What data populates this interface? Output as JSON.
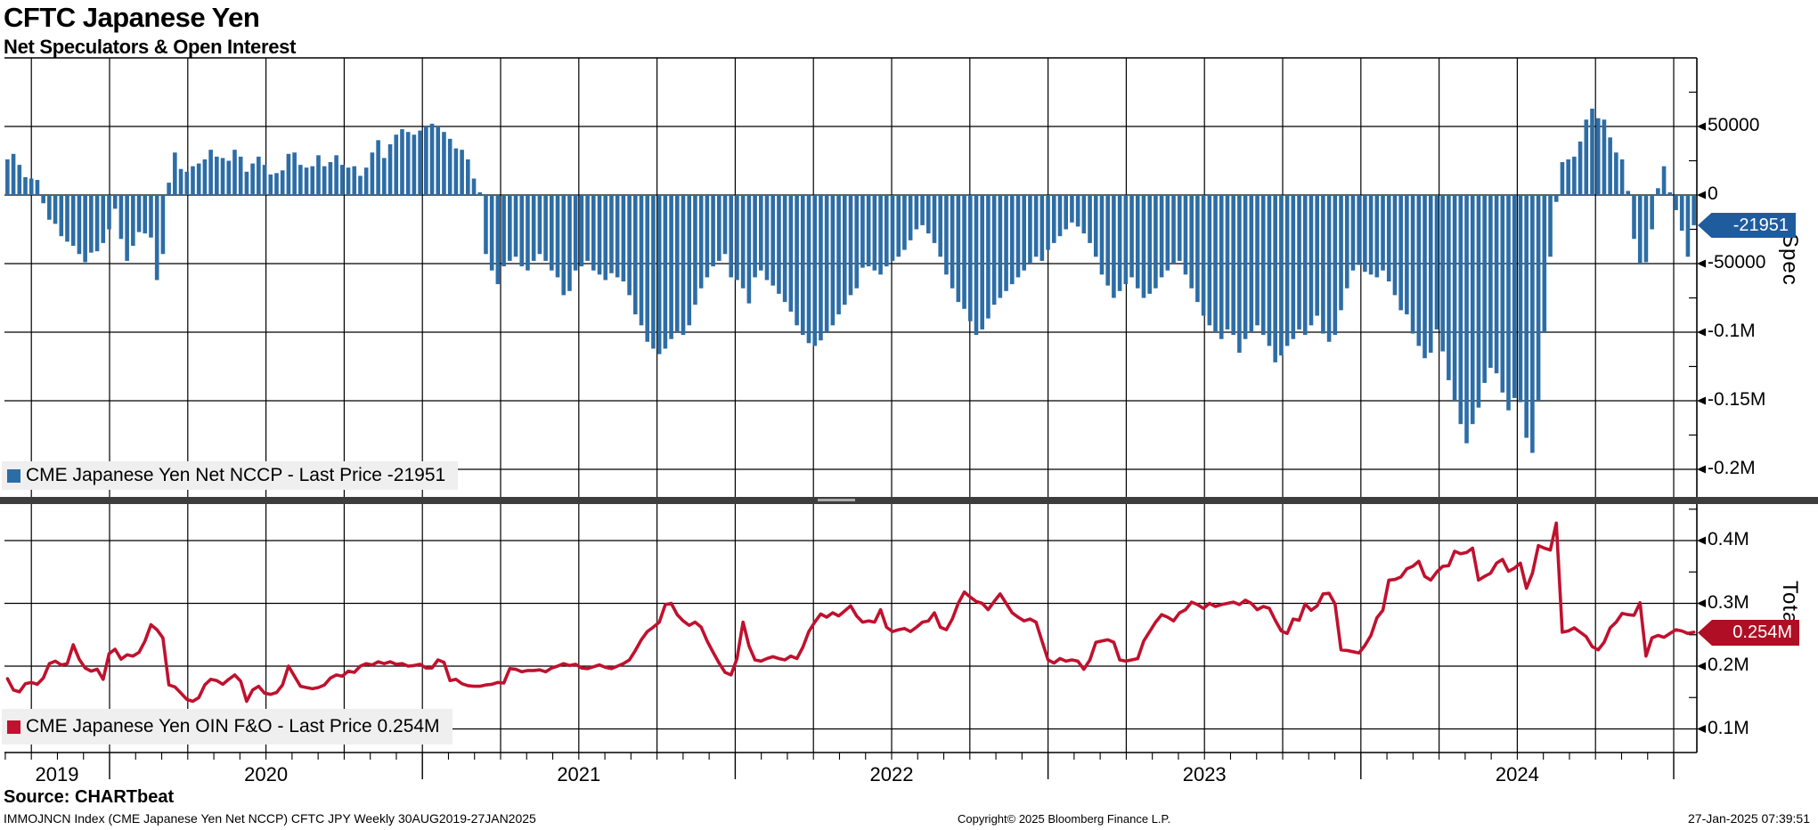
{
  "header": {
    "title": "CFTC Japanese Yen",
    "subtitle": "Net Speculators & Open Interest"
  },
  "panels": {
    "spec": {
      "legend_label": "CME Japanese Yen Net NCCP - Last Price -21951",
      "axis_title": "Spec",
      "last_price": "-21951",
      "yticks": [
        {
          "label": "50000",
          "value": 50000
        },
        {
          "label": "0",
          "value": 0
        },
        {
          "label": "-50000",
          "value": -50000
        },
        {
          "label": "-0.1M",
          "value": -100000
        },
        {
          "label": "-0.15M",
          "value": -150000
        },
        {
          "label": "-0.2M",
          "value": -200000
        }
      ]
    },
    "total": {
      "legend_label": "CME Japanese Yen OIN F&O - Last Price 0.254M",
      "axis_title": "Total",
      "last_price": "0.254M",
      "yticks": [
        {
          "label": "0.4M",
          "value": 0.4
        },
        {
          "label": "0.3M",
          "value": 0.3
        },
        {
          "label": "0.2M",
          "value": 0.2
        },
        {
          "label": "0.1M",
          "value": 0.1
        }
      ]
    }
  },
  "x_axis": {
    "years": [
      "2019",
      "2020",
      "2021",
      "2022",
      "2023",
      "2024"
    ]
  },
  "source_line": "Source: CHARTbeat",
  "footer": {
    "left": "IMMOJNCN Index (CME Japanese Yen Net NCCP) CFTC JPY  Weekly 30AUG2019-27JAN2025",
    "center": "Copyright© 2025 Bloomberg Finance L.P.",
    "right": "27-Jan-2025 07:39:51"
  },
  "colors": {
    "bar": "#2d6da6",
    "bar_tag_bg": "#1f5c9e",
    "line": "#c0112e",
    "line_tag_bg": "#b00e24",
    "legend_bg": "#efefef",
    "grid": "#000000",
    "divider": "#3d3d3d"
  },
  "chart_data": [
    {
      "type": "bar",
      "name": "CME Japanese Yen Net NCCP",
      "panel": "Spec",
      "frequency": "weekly",
      "start": "30AUG2019",
      "end": "27JAN2025",
      "last_price": -21951,
      "unit": "contracts, values in thousands",
      "ylim": [
        -222000,
        100000
      ],
      "values_thousands": [
        26,
        30,
        22,
        13,
        12,
        11,
        -6,
        -18,
        -21,
        -30,
        -34,
        -37,
        -43,
        -49,
        -42,
        -41,
        -35,
        -25,
        -10,
        -32,
        -48,
        -37,
        -27,
        -28,
        -31,
        -62,
        -43,
        9,
        31,
        19,
        17,
        21,
        23,
        26,
        33,
        28,
        27,
        25,
        33,
        28,
        17,
        23,
        28,
        22,
        15,
        16,
        18,
        30,
        31,
        22,
        20,
        21,
        29,
        21,
        24,
        29,
        22,
        20,
        21,
        14,
        20,
        31,
        40,
        27,
        37,
        44,
        48,
        46,
        44,
        47,
        50,
        52,
        50,
        46,
        41,
        34,
        33,
        26,
        12,
        2,
        -43,
        -55,
        -65,
        -52,
        -48,
        -45,
        -52,
        -55,
        -48,
        -43,
        -48,
        -55,
        -60,
        -73,
        -70,
        -55,
        -52,
        -48,
        -55,
        -58,
        -62,
        -57,
        -60,
        -63,
        -73,
        -87,
        -95,
        -107,
        -112,
        -116,
        -112,
        -105,
        -100,
        -102,
        -95,
        -80,
        -68,
        -60,
        -52,
        -48,
        -43,
        -60,
        -62,
        -68,
        -79,
        -60,
        -55,
        -62,
        -66,
        -72,
        -78,
        -85,
        -95,
        -102,
        -108,
        -110,
        -106,
        -100,
        -95,
        -87,
        -80,
        -73,
        -68,
        -53,
        -52,
        -55,
        -58,
        -52,
        -48,
        -45,
        -40,
        -33,
        -25,
        -22,
        -28,
        -35,
        -45,
        -58,
        -68,
        -78,
        -83,
        -92,
        -102,
        -98,
        -90,
        -80,
        -75,
        -70,
        -65,
        -60,
        -55,
        -50,
        -45,
        -48,
        -40,
        -35,
        -30,
        -25,
        -20,
        -23,
        -28,
        -35,
        -45,
        -58,
        -66,
        -75,
        -70,
        -65,
        -60,
        -68,
        -75,
        -72,
        -68,
        -60,
        -55,
        -50,
        -48,
        -58,
        -68,
        -78,
        -88,
        -95,
        -100,
        -105,
        -98,
        -102,
        -115,
        -105,
        -100,
        -95,
        -102,
        -110,
        -122,
        -117,
        -110,
        -105,
        -98,
        -102,
        -95,
        -88,
        -101,
        -107,
        -102,
        -84,
        -68,
        -55,
        -51,
        -56,
        -58,
        -60,
        -55,
        -63,
        -73,
        -84,
        -87,
        -101,
        -110,
        -119,
        -115,
        -98,
        -114,
        -135,
        -150,
        -167,
        -181,
        -167,
        -155,
        -137,
        -126,
        -130,
        -144,
        -157,
        -148,
        -151,
        -177,
        -188,
        -150,
        -100,
        -45,
        -5,
        24,
        26,
        28,
        39,
        55,
        63,
        56,
        55,
        42,
        31,
        26,
        3,
        -32,
        -50,
        -49,
        -25,
        5,
        21,
        2,
        -11,
        -26,
        -45,
        -22
      ]
    },
    {
      "type": "line",
      "name": "CME Japanese Yen OIN F&O",
      "panel": "Total",
      "frequency": "weekly",
      "start": "30AUG2019",
      "end": "27JAN2025",
      "last_price": "0.254M",
      "unit": "contracts, values in millions",
      "ylim": [
        0.062,
        0.457
      ],
      "values_millions": [
        0.18,
        0.162,
        0.159,
        0.172,
        0.174,
        0.171,
        0.181,
        0.204,
        0.208,
        0.202,
        0.204,
        0.234,
        0.211,
        0.197,
        0.192,
        0.195,
        0.179,
        0.22,
        0.227,
        0.211,
        0.218,
        0.216,
        0.222,
        0.24,
        0.266,
        0.258,
        0.245,
        0.17,
        0.167,
        0.157,
        0.147,
        0.144,
        0.15,
        0.17,
        0.179,
        0.177,
        0.171,
        0.179,
        0.186,
        0.176,
        0.144,
        0.162,
        0.168,
        0.157,
        0.155,
        0.158,
        0.17,
        0.2,
        0.184,
        0.168,
        0.166,
        0.164,
        0.166,
        0.17,
        0.181,
        0.186,
        0.184,
        0.192,
        0.19,
        0.2,
        0.204,
        0.202,
        0.207,
        0.204,
        0.207,
        0.203,
        0.204,
        0.2,
        0.201,
        0.203,
        0.197,
        0.197,
        0.21,
        0.206,
        0.177,
        0.179,
        0.172,
        0.169,
        0.168,
        0.168,
        0.17,
        0.171,
        0.174,
        0.173,
        0.196,
        0.195,
        0.191,
        0.193,
        0.193,
        0.194,
        0.191,
        0.197,
        0.2,
        0.204,
        0.201,
        0.203,
        0.197,
        0.196,
        0.199,
        0.202,
        0.198,
        0.196,
        0.2,
        0.204,
        0.21,
        0.225,
        0.242,
        0.255,
        0.262,
        0.27,
        0.298,
        0.3,
        0.282,
        0.272,
        0.265,
        0.27,
        0.262,
        0.24,
        0.222,
        0.205,
        0.19,
        0.186,
        0.212,
        0.27,
        0.232,
        0.21,
        0.208,
        0.212,
        0.215,
        0.212,
        0.21,
        0.216,
        0.212,
        0.23,
        0.255,
        0.27,
        0.283,
        0.278,
        0.285,
        0.28,
        0.288,
        0.296,
        0.28,
        0.27,
        0.272,
        0.27,
        0.29,
        0.262,
        0.255,
        0.258,
        0.26,
        0.255,
        0.262,
        0.27,
        0.272,
        0.285,
        0.262,
        0.258,
        0.275,
        0.3,
        0.318,
        0.31,
        0.303,
        0.3,
        0.29,
        0.303,
        0.315,
        0.3,
        0.285,
        0.278,
        0.272,
        0.275,
        0.27,
        0.24,
        0.21,
        0.205,
        0.212,
        0.208,
        0.21,
        0.208,
        0.195,
        0.21,
        0.238,
        0.24,
        0.242,
        0.238,
        0.21,
        0.208,
        0.21,
        0.212,
        0.24,
        0.255,
        0.27,
        0.282,
        0.278,
        0.272,
        0.285,
        0.29,
        0.302,
        0.298,
        0.292,
        0.3,
        0.295,
        0.298,
        0.3,
        0.302,
        0.298,
        0.305,
        0.3,
        0.29,
        0.295,
        0.292,
        0.273,
        0.256,
        0.252,
        0.275,
        0.273,
        0.299,
        0.289,
        0.296,
        0.315,
        0.316,
        0.299,
        0.226,
        0.225,
        0.223,
        0.221,
        0.233,
        0.249,
        0.277,
        0.289,
        0.337,
        0.338,
        0.342,
        0.355,
        0.359,
        0.367,
        0.343,
        0.337,
        0.35,
        0.359,
        0.36,
        0.383,
        0.379,
        0.381,
        0.388,
        0.337,
        0.343,
        0.348,
        0.364,
        0.37,
        0.351,
        0.356,
        0.364,
        0.324,
        0.348,
        0.392,
        0.388,
        0.385,
        0.428,
        0.254,
        0.256,
        0.261,
        0.254,
        0.247,
        0.231,
        0.226,
        0.238,
        0.261,
        0.27,
        0.284,
        0.282,
        0.281,
        0.301,
        0.216,
        0.245,
        0.249,
        0.246,
        0.252,
        0.258,
        0.256,
        0.252,
        0.254
      ]
    }
  ]
}
